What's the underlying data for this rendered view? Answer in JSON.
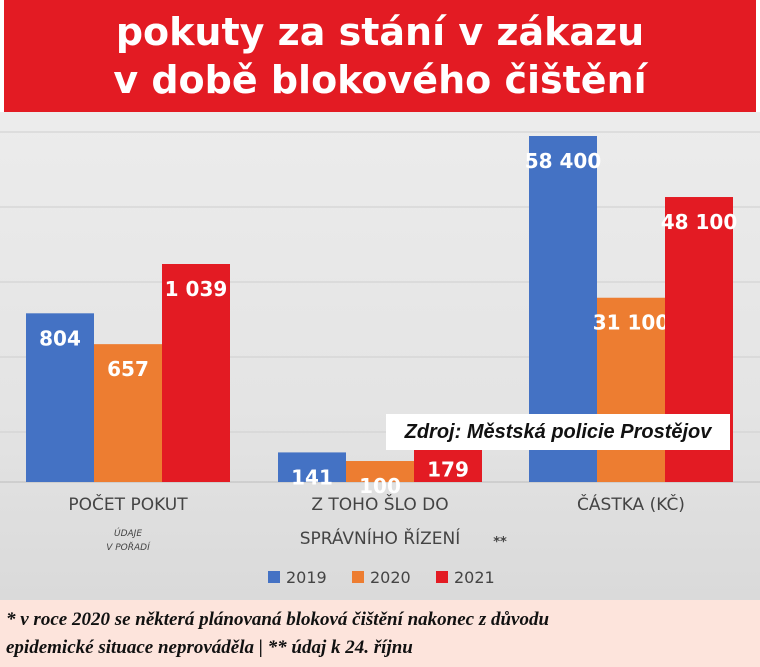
{
  "title": {
    "line1": "pokuty za stání v zákazu",
    "line2": "v době blokového čištění"
  },
  "source": "Zdroj: Městská policie Prostějov",
  "footnote": {
    "line1": "* v roce 2020 se některá plánovaná bloková čištění nakonec z důvodu",
    "line2": "epidemické situace neprováděla   |   ** údaj k 24. říjnu"
  },
  "colors": {
    "title_bg": "#e31b23",
    "series_2019": "#4472c4",
    "series_2020": "#ed7d31",
    "series_2021": "#e31b23"
  },
  "chart_data": {
    "type": "bar",
    "categories": [
      "POČET POKUT",
      "Z TOHO ŠLO DO SPRÁVNÍHO ŘÍZENÍ",
      "ČÁSTKA (KČ)"
    ],
    "category_label_lines": [
      [
        "POČET POKUT"
      ],
      [
        "Z TOHO ŠLO DO",
        "SPRÁVNÍHO ŘÍZENÍ"
      ],
      [
        "ČÁSTKA (KČ)"
      ]
    ],
    "category_notes": [
      "ÚDAJE",
      "V POŘADÍ",
      "**"
    ],
    "series": [
      {
        "name": "2019",
        "values": [
          804,
          141,
          58400
        ],
        "labels": [
          "804",
          "141",
          "58 400"
        ]
      },
      {
        "name": "2020",
        "values": [
          657,
          100,
          31100
        ],
        "labels": [
          "657",
          "100",
          "31 100"
        ]
      },
      {
        "name": "2021",
        "values": [
          1039,
          179,
          48100
        ],
        "labels": [
          "1 039",
          "179",
          "48 100"
        ]
      }
    ],
    "legend_position": "bottom",
    "grid": true
  }
}
